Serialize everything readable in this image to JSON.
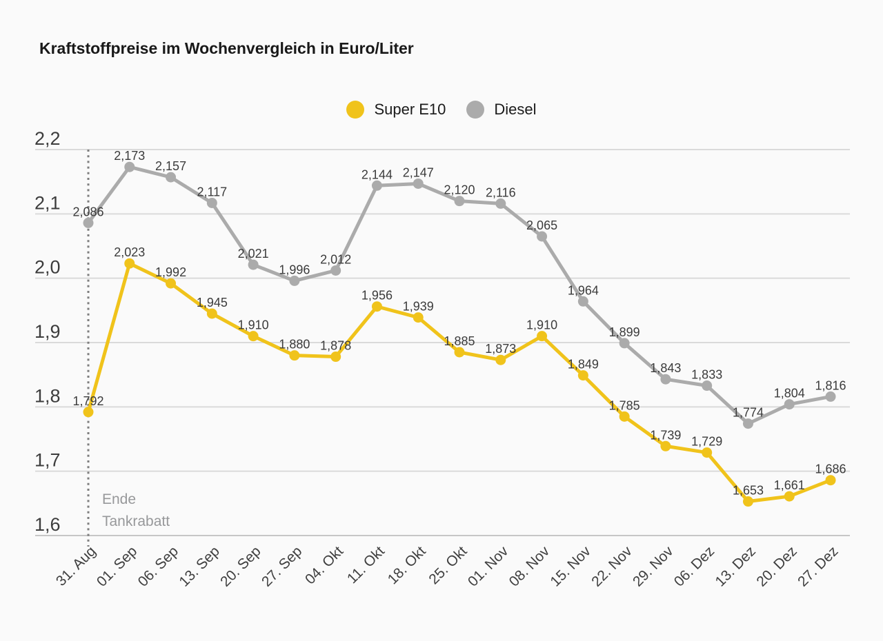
{
  "title": "Kraftstoffpreise im Wochenvergleich in Euro/Liter",
  "legend": {
    "items": [
      {
        "label": "Super E10",
        "color": "#f0c31b"
      },
      {
        "label": "Diesel",
        "color": "#ababab"
      }
    ]
  },
  "chart_data": {
    "type": "line",
    "title": "Kraftstoffpreise im Wochenvergleich in Euro/Liter",
    "unit": "Euro/Liter",
    "categories": [
      "31. Aug",
      "01. Sep",
      "06. Sep",
      "13. Sep",
      "20. Sep",
      "27. Sep",
      "04. Okt",
      "11. Okt",
      "18. Okt",
      "25. Okt",
      "01. Nov",
      "08. Nov",
      "15. Nov",
      "22. Nov",
      "29. Nov",
      "06. Dez",
      "13. Dez",
      "20. Dez",
      "27. Dez"
    ],
    "series": [
      {
        "name": "Super E10",
        "color": "#f0c31b",
        "values": [
          1.792,
          2.023,
          1.992,
          1.945,
          1.91,
          1.88,
          1.878,
          1.956,
          1.939,
          1.885,
          1.873,
          1.91,
          1.849,
          1.785,
          1.739,
          1.729,
          1.653,
          1.661,
          1.686
        ]
      },
      {
        "name": "Diesel",
        "color": "#ababab",
        "values": [
          2.086,
          2.173,
          2.157,
          2.117,
          2.021,
          1.996,
          2.012,
          2.144,
          2.147,
          2.12,
          2.116,
          2.065,
          1.964,
          1.899,
          1.843,
          1.833,
          1.774,
          1.804,
          1.816
        ]
      }
    ],
    "ylim": [
      1.6,
      2.2
    ],
    "yticks": [
      {
        "value": 2.2,
        "label": "2,2"
      },
      {
        "value": 2.1,
        "label": "2,1"
      },
      {
        "value": 2.0,
        "label": "2,0"
      },
      {
        "value": 1.9,
        "label": "1,9"
      },
      {
        "value": 1.8,
        "label": "1,8"
      },
      {
        "value": 1.7,
        "label": "1,7"
      },
      {
        "value": 1.6,
        "label": "1,6"
      }
    ],
    "grid": true,
    "legend_position": "top-center",
    "decimal_separator": ",",
    "annotation": {
      "x_index": 0,
      "lines": [
        "Ende",
        "Tankrabatt"
      ]
    }
  }
}
